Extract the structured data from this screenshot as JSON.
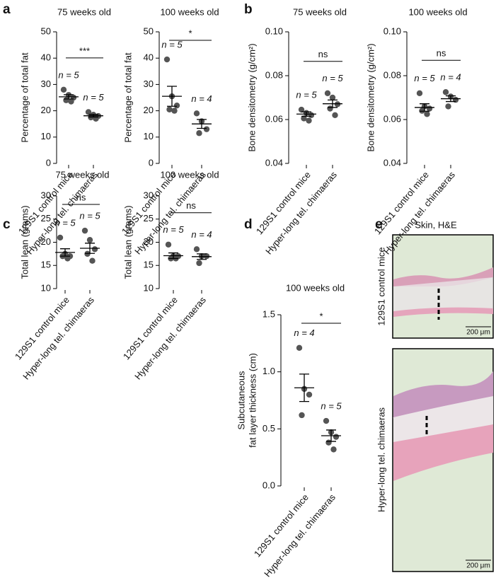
{
  "panel_labels": [
    "a",
    "b",
    "c",
    "d",
    "e"
  ],
  "chart_data": [
    {
      "type": "dot",
      "title": "75 weeks old",
      "ylabel": [
        "Percentage of total fat"
      ],
      "categories": [
        "129S1 control mice",
        "Hyper-long tel. chimaeras"
      ],
      "values": [
        [
          28,
          26,
          25,
          24,
          23.5
        ],
        [
          19.5,
          18.5,
          18,
          17.5,
          17
        ]
      ],
      "mean": [
        25.3,
        18.1
      ],
      "sem": [
        0.8,
        0.5
      ],
      "n_labels": [
        "n = 5",
        "n = 5"
      ],
      "significance": "***",
      "color": "#555555",
      "ylim": [
        0,
        50
      ],
      "yticks": [
        0,
        10,
        20,
        30,
        40,
        50
      ]
    },
    {
      "type": "dot",
      "title": "100 weeks old",
      "ylabel": [
        "Percentage of total fat"
      ],
      "categories": [
        "129S1 control mice",
        "Hyper-long tel. chimaeras"
      ],
      "values": [
        [
          39.5,
          25.5,
          22,
          20.5,
          20
        ],
        [
          19,
          16,
          13,
          11.5
        ]
      ],
      "mean": [
        25.5,
        15
      ],
      "sem": [
        3.8,
        1.7
      ],
      "n_labels": [
        "n = 5",
        "n = 4"
      ],
      "significance": "*",
      "color": "#555555",
      "ylim": [
        0,
        50
      ],
      "yticks": [
        0,
        10,
        20,
        30,
        40,
        50
      ]
    },
    {
      "type": "dot",
      "title": "75 weeks old",
      "ylabel": [
        "Bone densitometry (g/cm²)"
      ],
      "categories": [
        "129S1 control mice",
        "Hyper-long tel. chimaeras"
      ],
      "values": [
        [
          0.0645,
          0.063,
          0.062,
          0.0605,
          0.0595
        ],
        [
          0.072,
          0.07,
          0.067,
          0.065,
          0.062
        ]
      ],
      "mean": [
        0.0625,
        0.0672
      ],
      "sem": [
        0.001,
        0.0017
      ],
      "n_labels": [
        "n = 5",
        "n = 5"
      ],
      "significance": "ns",
      "color": "#555555",
      "ylim": [
        0.04,
        0.1
      ],
      "yticks": [
        0.04,
        0.06,
        0.08,
        {
          "value": 0.1,
          "label": "0.10"
        }
      ]
    },
    {
      "type": "dot",
      "title": "100 weeks old",
      "ylabel": [
        "Bone densitometry (g/cm²)"
      ],
      "categories": [
        "129S1 control mice",
        "Hyper-long tel. chimaeras"
      ],
      "values": [
        [
          0.072,
          0.066,
          0.065,
          0.064,
          0.0625
        ],
        [
          0.0725,
          0.0705,
          0.069,
          0.066
        ]
      ],
      "mean": [
        0.0655,
        0.0695
      ],
      "sem": [
        0.0017,
        0.0013
      ],
      "n_labels": [
        "n = 5",
        "n = 4"
      ],
      "significance": "ns",
      "color": "#555555",
      "ylim": [
        0.04,
        0.1
      ],
      "yticks": [
        0.04,
        0.06,
        0.08,
        {
          "value": 0.1,
          "label": "0.10"
        }
      ]
    },
    {
      "type": "dot",
      "title": "75 weeks old",
      "ylabel": [
        "Total lean (grams)"
      ],
      "categories": [
        "129S1 control mice",
        "Hyper-long tel. chimaeras"
      ],
      "values": [
        [
          21,
          17.5,
          17,
          17,
          16.5
        ],
        [
          22.5,
          20.5,
          18.5,
          17.5,
          16
        ]
      ],
      "mean": [
        17.8,
        18.7
      ],
      "sem": [
        0.8,
        1.1
      ],
      "n_labels": [
        "n = 5",
        "n = 5"
      ],
      "significance": "ns",
      "color": "#555555",
      "ylim": [
        10,
        30
      ],
      "yticks": [
        10,
        15,
        20,
        25,
        30
      ]
    },
    {
      "type": "dot",
      "title": "100 weeks old",
      "ylabel": [
        "Total lean (grams)"
      ],
      "categories": [
        "129S1 control mice",
        "Hyper-long tel. chimaeras"
      ],
      "values": [
        [
          19.5,
          17,
          17,
          16.5,
          16.5
        ],
        [
          18.5,
          17,
          17,
          15.5
        ]
      ],
      "mean": [
        17.1,
        16.9
      ],
      "sem": [
        0.6,
        0.6
      ],
      "n_labels": [
        "n = 5",
        "n = 4"
      ],
      "significance": "ns",
      "color": "#555555",
      "ylim": [
        10,
        30
      ],
      "yticks": [
        10,
        15,
        20,
        25,
        30
      ]
    },
    {
      "type": "dot",
      "title": "100 weeks old",
      "ylabel": [
        "Subcutaneous",
        "fat layer thickness (cm)"
      ],
      "categories": [
        "129S1 control mice",
        "Hyper-long tel. chimaeras"
      ],
      "values": [
        [
          1.21,
          0.85,
          0.8,
          0.62
        ],
        [
          0.57,
          0.47,
          0.43,
          0.38,
          0.32
        ]
      ],
      "mean": [
        0.86,
        0.44
      ],
      "sem": [
        0.12,
        0.05
      ],
      "n_labels": [
        "n = 4",
        "n = 5"
      ],
      "significance": "*",
      "color": "#555555",
      "ylim": [
        0,
        1.5
      ],
      "yticks": [
        {
          "value": 0,
          "label": "0.0"
        },
        0.5,
        {
          "value": 1,
          "label": "1.0"
        },
        1.5
      ]
    }
  ],
  "histology": {
    "title": "Skin, H&E",
    "rows": [
      "129S1 control mice",
      "Hyper-long tel. chimaeras"
    ],
    "scale_bar": "200 μm"
  }
}
